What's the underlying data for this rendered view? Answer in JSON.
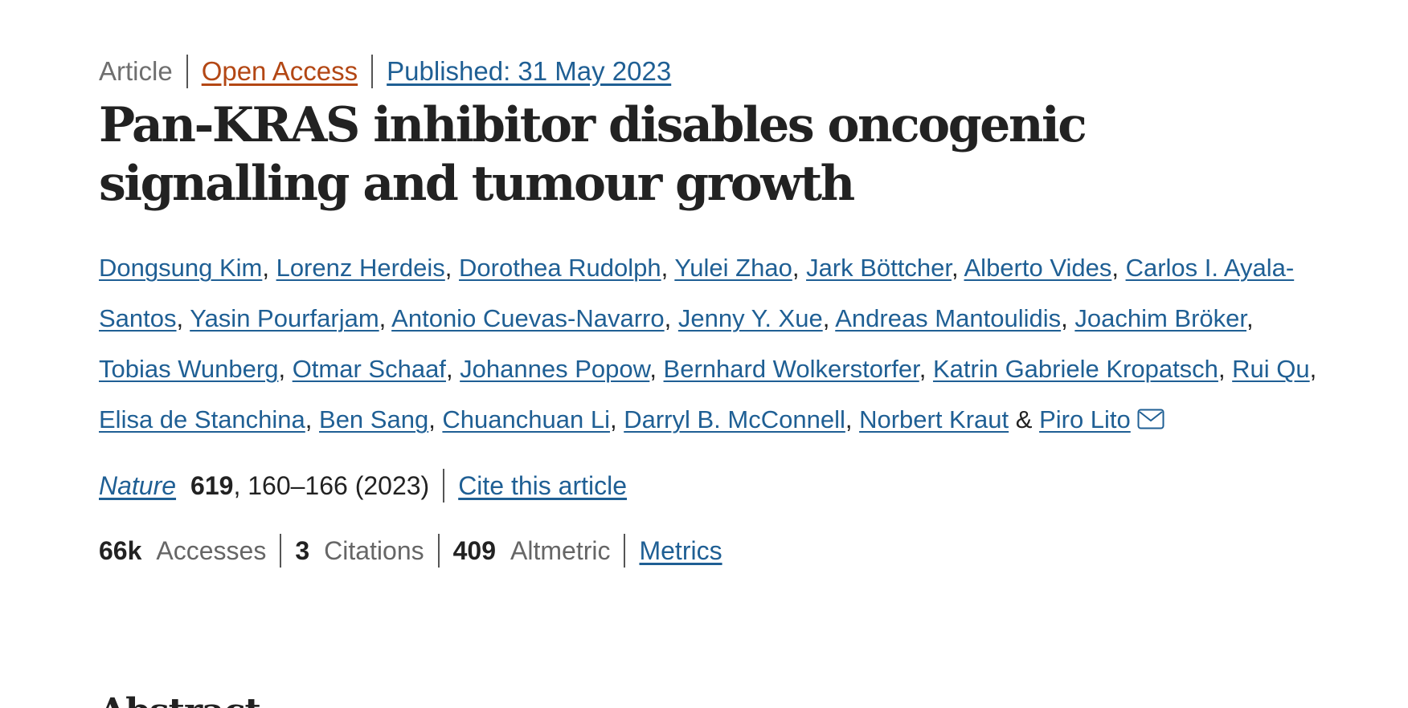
{
  "header": {
    "article_type": "Article",
    "open_access": "Open Access",
    "published": "Published: 31 May 2023"
  },
  "title": "Pan-KRAS inhibitor disables oncogenic signalling and tumour growth",
  "authors": [
    "Dongsung Kim",
    "Lorenz Herdeis",
    "Dorothea Rudolph",
    "Yulei Zhao",
    "Jark Böttcher",
    "Alberto Vides",
    "Carlos I. Ayala-Santos",
    "Yasin Pourfarjam",
    "Antonio Cuevas-Navarro",
    "Jenny Y. Xue",
    "Andreas Mantoulidis",
    "Joachim Bröker",
    "Tobias Wunberg",
    "Otmar Schaaf",
    "Johannes Popow",
    "Bernhard Wolkerstorfer",
    "Katrin Gabriele Kropatsch",
    "Rui Qu",
    "Elisa de Stanchina",
    "Ben Sang",
    "Chuanchuan Li",
    "Darryl B. McConnell",
    "Norbert Kraut",
    "Piro Lito"
  ],
  "author_separators": {
    "comma": ", ",
    "final": " & "
  },
  "corresponding_icon": "mail-icon",
  "citation": {
    "journal": "Nature",
    "volume": "619",
    "pages_year": ", 160–166 (2023)",
    "cite_label": "Cite this article"
  },
  "metrics": {
    "accesses_value": "66k",
    "accesses_label": "Accesses",
    "citations_value": "3",
    "citations_label": "Citations",
    "altmetric_value": "409",
    "altmetric_label": "Altmetric",
    "metrics_link": "Metrics"
  },
  "section_heading": "Abstract",
  "colors": {
    "link": "#1f5f94",
    "open_access": "#b34714",
    "text": "#222222",
    "muted": "#666666"
  }
}
